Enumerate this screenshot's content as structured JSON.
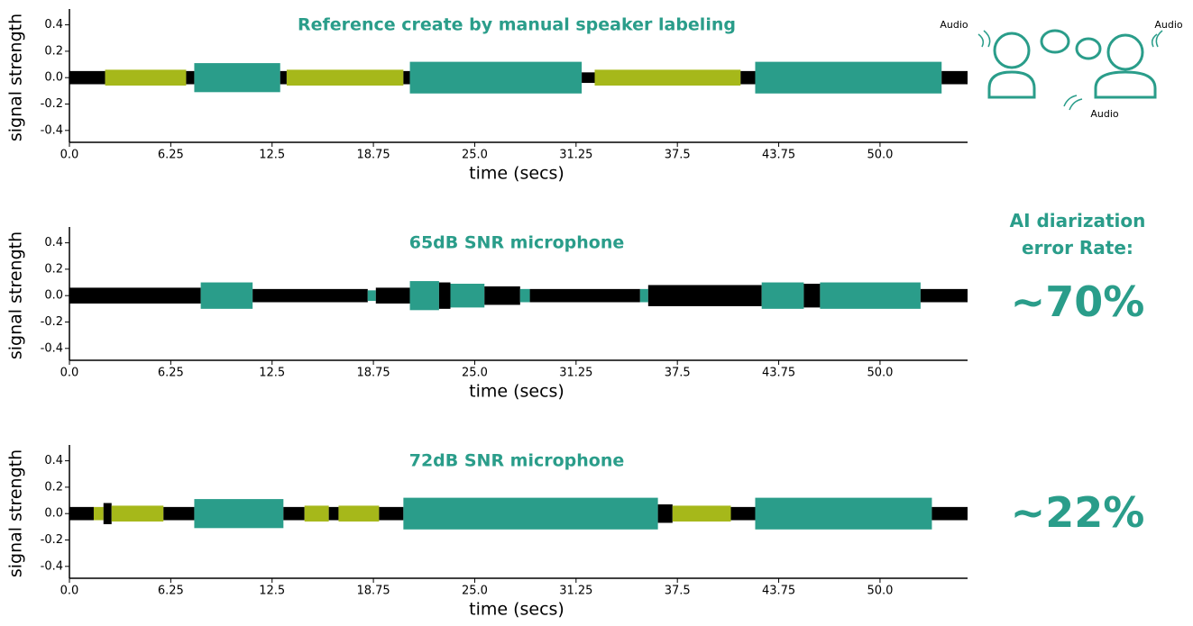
{
  "chart_data": [
    {
      "type": "waveform",
      "title": "Reference create by manual speaker labeling",
      "xlabel": "time (secs)",
      "ylabel": "signal strength",
      "xlim": [
        0,
        55.4
      ],
      "xticks": [
        {
          "value": 0,
          "label": "0.0"
        },
        6.25,
        12.5,
        18.75,
        {
          "value": 25,
          "label": "25.0"
        },
        31.25,
        37.5,
        43.75,
        {
          "value": 50,
          "label": "50.0"
        }
      ],
      "ylim": [
        -0.49,
        0.52
      ],
      "yticks": [
        0.4,
        0.2,
        {
          "value": 0,
          "label": "0.0"
        },
        -0.2,
        -0.4
      ],
      "segments": {
        "start": [
          0,
          2.2,
          7.2,
          7.7,
          13.0,
          13.4,
          20.6,
          21.0,
          31.6,
          32.4,
          41.4,
          42.3,
          53.8
        ],
        "end": [
          2.2,
          7.2,
          7.7,
          13.0,
          13.4,
          20.6,
          21.0,
          31.6,
          32.4,
          41.4,
          42.3,
          53.8,
          55.4
        ],
        "amplitude": [
          0.05,
          0.06,
          0.05,
          0.11,
          0.05,
          0.06,
          0.05,
          0.12,
          0.04,
          0.06,
          0.05,
          0.12,
          0.05
        ],
        "color": [
          "#000000",
          "#a6b81a",
          "#000000",
          "#2a9d8a",
          "#000000",
          "#a6b81a",
          "#000000",
          "#2a9d8a",
          "#000000",
          "#a6b81a",
          "#000000",
          "#2a9d8a",
          "#000000"
        ]
      }
    },
    {
      "type": "waveform",
      "title": "65dB SNR microphone",
      "xlabel": "time (secs)",
      "ylabel": "signal strength",
      "xlim": [
        0,
        55.4
      ],
      "xticks": [
        {
          "value": 0,
          "label": "0.0"
        },
        6.25,
        12.5,
        18.75,
        {
          "value": 25,
          "label": "25.0"
        },
        31.25,
        37.5,
        43.75,
        {
          "value": 50,
          "label": "50.0"
        }
      ],
      "ylim": [
        -0.49,
        0.52
      ],
      "yticks": [
        0.4,
        0.2,
        {
          "value": 0,
          "label": "0.0"
        },
        -0.2,
        -0.4
      ],
      "segments": {
        "start": [
          0,
          8.1,
          11.3,
          18.4,
          18.9,
          21.0,
          22.8,
          23.5,
          25.6,
          27.8,
          28.4,
          35.2,
          35.7,
          42.7,
          45.3,
          46.3,
          52.5
        ],
        "end": [
          8.1,
          11.3,
          18.4,
          18.9,
          21.0,
          22.8,
          23.5,
          25.6,
          27.8,
          28.4,
          35.2,
          35.7,
          42.7,
          45.3,
          46.3,
          52.5,
          55.4
        ],
        "amplitude": [
          0.06,
          0.1,
          0.05,
          0.04,
          0.06,
          0.11,
          0.1,
          0.09,
          0.07,
          0.05,
          0.05,
          0.05,
          0.08,
          0.1,
          0.09,
          0.1,
          0.05
        ],
        "color": [
          "#000000",
          "#2a9d8a",
          "#000000",
          "#2a9d8a",
          "#000000",
          "#2a9d8a",
          "#000000",
          "#2a9d8a",
          "#000000",
          "#2a9d8a",
          "#000000",
          "#2a9d8a",
          "#000000",
          "#2a9d8a",
          "#000000",
          "#2a9d8a",
          "#000000"
        ]
      }
    },
    {
      "type": "waveform",
      "title": "72dB SNR microphone",
      "xlabel": "time (secs)",
      "ylabel": "signal strength",
      "xlim": [
        0,
        55.4
      ],
      "xticks": [
        {
          "value": 0,
          "label": "0.0"
        },
        6.25,
        12.5,
        18.75,
        {
          "value": 25,
          "label": "25.0"
        },
        31.25,
        37.5,
        43.75,
        {
          "value": 50,
          "label": "50.0"
        }
      ],
      "ylim": [
        -0.49,
        0.52
      ],
      "yticks": [
        0.4,
        0.2,
        {
          "value": 0,
          "label": "0.0"
        },
        -0.2,
        -0.4
      ],
      "segments": {
        "start": [
          0,
          1.5,
          2.1,
          2.6,
          5.8,
          7.7,
          13.2,
          14.5,
          16.0,
          16.6,
          19.1,
          20.6,
          36.3,
          37.2,
          40.8,
          42.3,
          53.2
        ],
        "end": [
          1.5,
          2.1,
          2.6,
          5.8,
          7.7,
          13.2,
          14.5,
          16.0,
          16.6,
          19.1,
          20.6,
          36.3,
          37.2,
          40.8,
          42.3,
          53.2,
          55.4
        ],
        "amplitude": [
          0.05,
          0.05,
          0.08,
          0.06,
          0.05,
          0.11,
          0.05,
          0.06,
          0.05,
          0.06,
          0.05,
          0.12,
          0.07,
          0.06,
          0.05,
          0.12,
          0.05
        ],
        "color": [
          "#000000",
          "#a6b81a",
          "#000000",
          "#a6b81a",
          "#000000",
          "#2a9d8a",
          "#000000",
          "#a6b81a",
          "#000000",
          "#a6b81a",
          "#000000",
          "#2a9d8a",
          "#000000",
          "#a6b81a",
          "#000000",
          "#2a9d8a",
          "#000000"
        ]
      }
    }
  ],
  "side_panel": {
    "heading": "AI diarization error Rate:",
    "rates": [
      "~70%",
      "~22%"
    ],
    "icon_labels": [
      "Audio",
      "Audio",
      "Audio"
    ]
  }
}
